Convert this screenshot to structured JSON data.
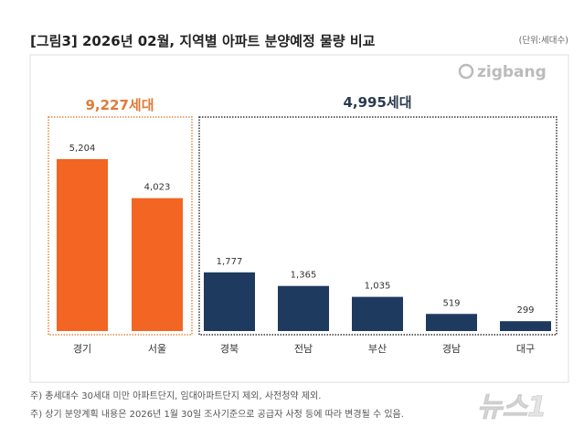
{
  "chart_data": {
    "type": "bar",
    "title": "[그림3] 2026년 02월, 지역별 아파트 분양예정 물량 비교",
    "unit_note": "(단위:세대수)",
    "categories": [
      "경기",
      "서울",
      "경북",
      "전남",
      "부산",
      "경남",
      "대구"
    ],
    "values": [
      5204,
      4023,
      1777,
      1365,
      1035,
      519,
      299
    ],
    "value_labels": [
      "5,204",
      "4,023",
      "1,777",
      "1,365",
      "1,035",
      "519",
      "299"
    ],
    "groups": [
      {
        "label": "9,227세대",
        "members": [
          "경기",
          "서울"
        ],
        "color": "#f26522"
      },
      {
        "label": "4,995세대",
        "members": [
          "경북",
          "전남",
          "부산",
          "경남",
          "대구"
        ],
        "color": "#1f3a5f"
      }
    ],
    "grid": false,
    "footnotes": [
      "주) 총세대수 30세대 미만 아파트단지, 임대아파트단지 제외, 사전청약 제외.",
      "주) 상기 분양계획 내용은 2026년 1월 30일 조사기준으로 공급자 사정 등에 따라 변경될 수 있음."
    ]
  },
  "logo": "zigbang",
  "watermark": "뉴스1"
}
